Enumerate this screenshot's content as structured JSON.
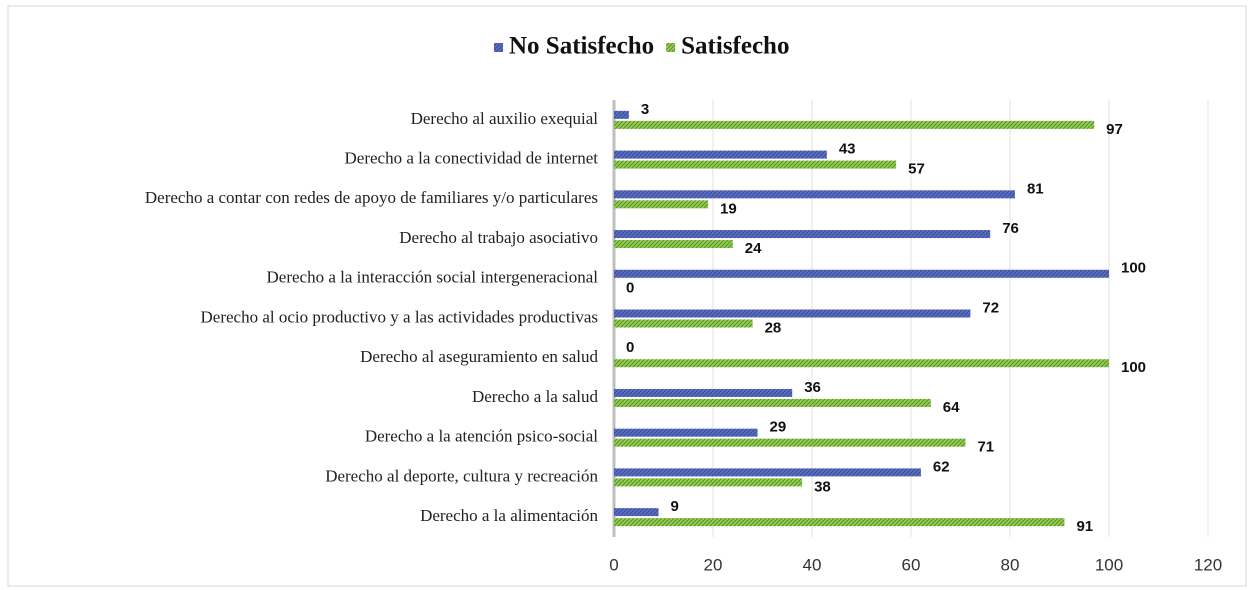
{
  "chart_data": {
    "type": "barh",
    "categories": [
      "Derecho al auxilio exequial",
      "Derecho a la conectividad de internet",
      "Derecho a contar con redes de apoyo de familiares y/o particulares",
      "Derecho al trabajo asociativo ",
      "Derecho a la interacción social intergeneracional",
      "Derecho al ocio productivo y a las actividades productivas",
      "Derecho al aseguramiento en salud",
      "Derecho a la salud",
      "Derecho a la atención psico-social",
      "Derecho al deporte, cultura y recreación",
      "Derecho a la alimentación"
    ],
    "series": [
      {
        "name": "No Satisfecho",
        "color": "#5b6fc4",
        "values": [
          3,
          43,
          81,
          76,
          100,
          72,
          0,
          36,
          29,
          62,
          9
        ]
      },
      {
        "name": "Satisfecho",
        "color": "#92d050",
        "values": [
          97,
          57,
          19,
          24,
          0,
          28,
          100,
          64,
          71,
          38,
          91
        ]
      }
    ],
    "xlim": [
      0,
      120
    ],
    "xticks": [
      0,
      20,
      40,
      60,
      80,
      100,
      120
    ],
    "grid": true,
    "legend": "top"
  }
}
